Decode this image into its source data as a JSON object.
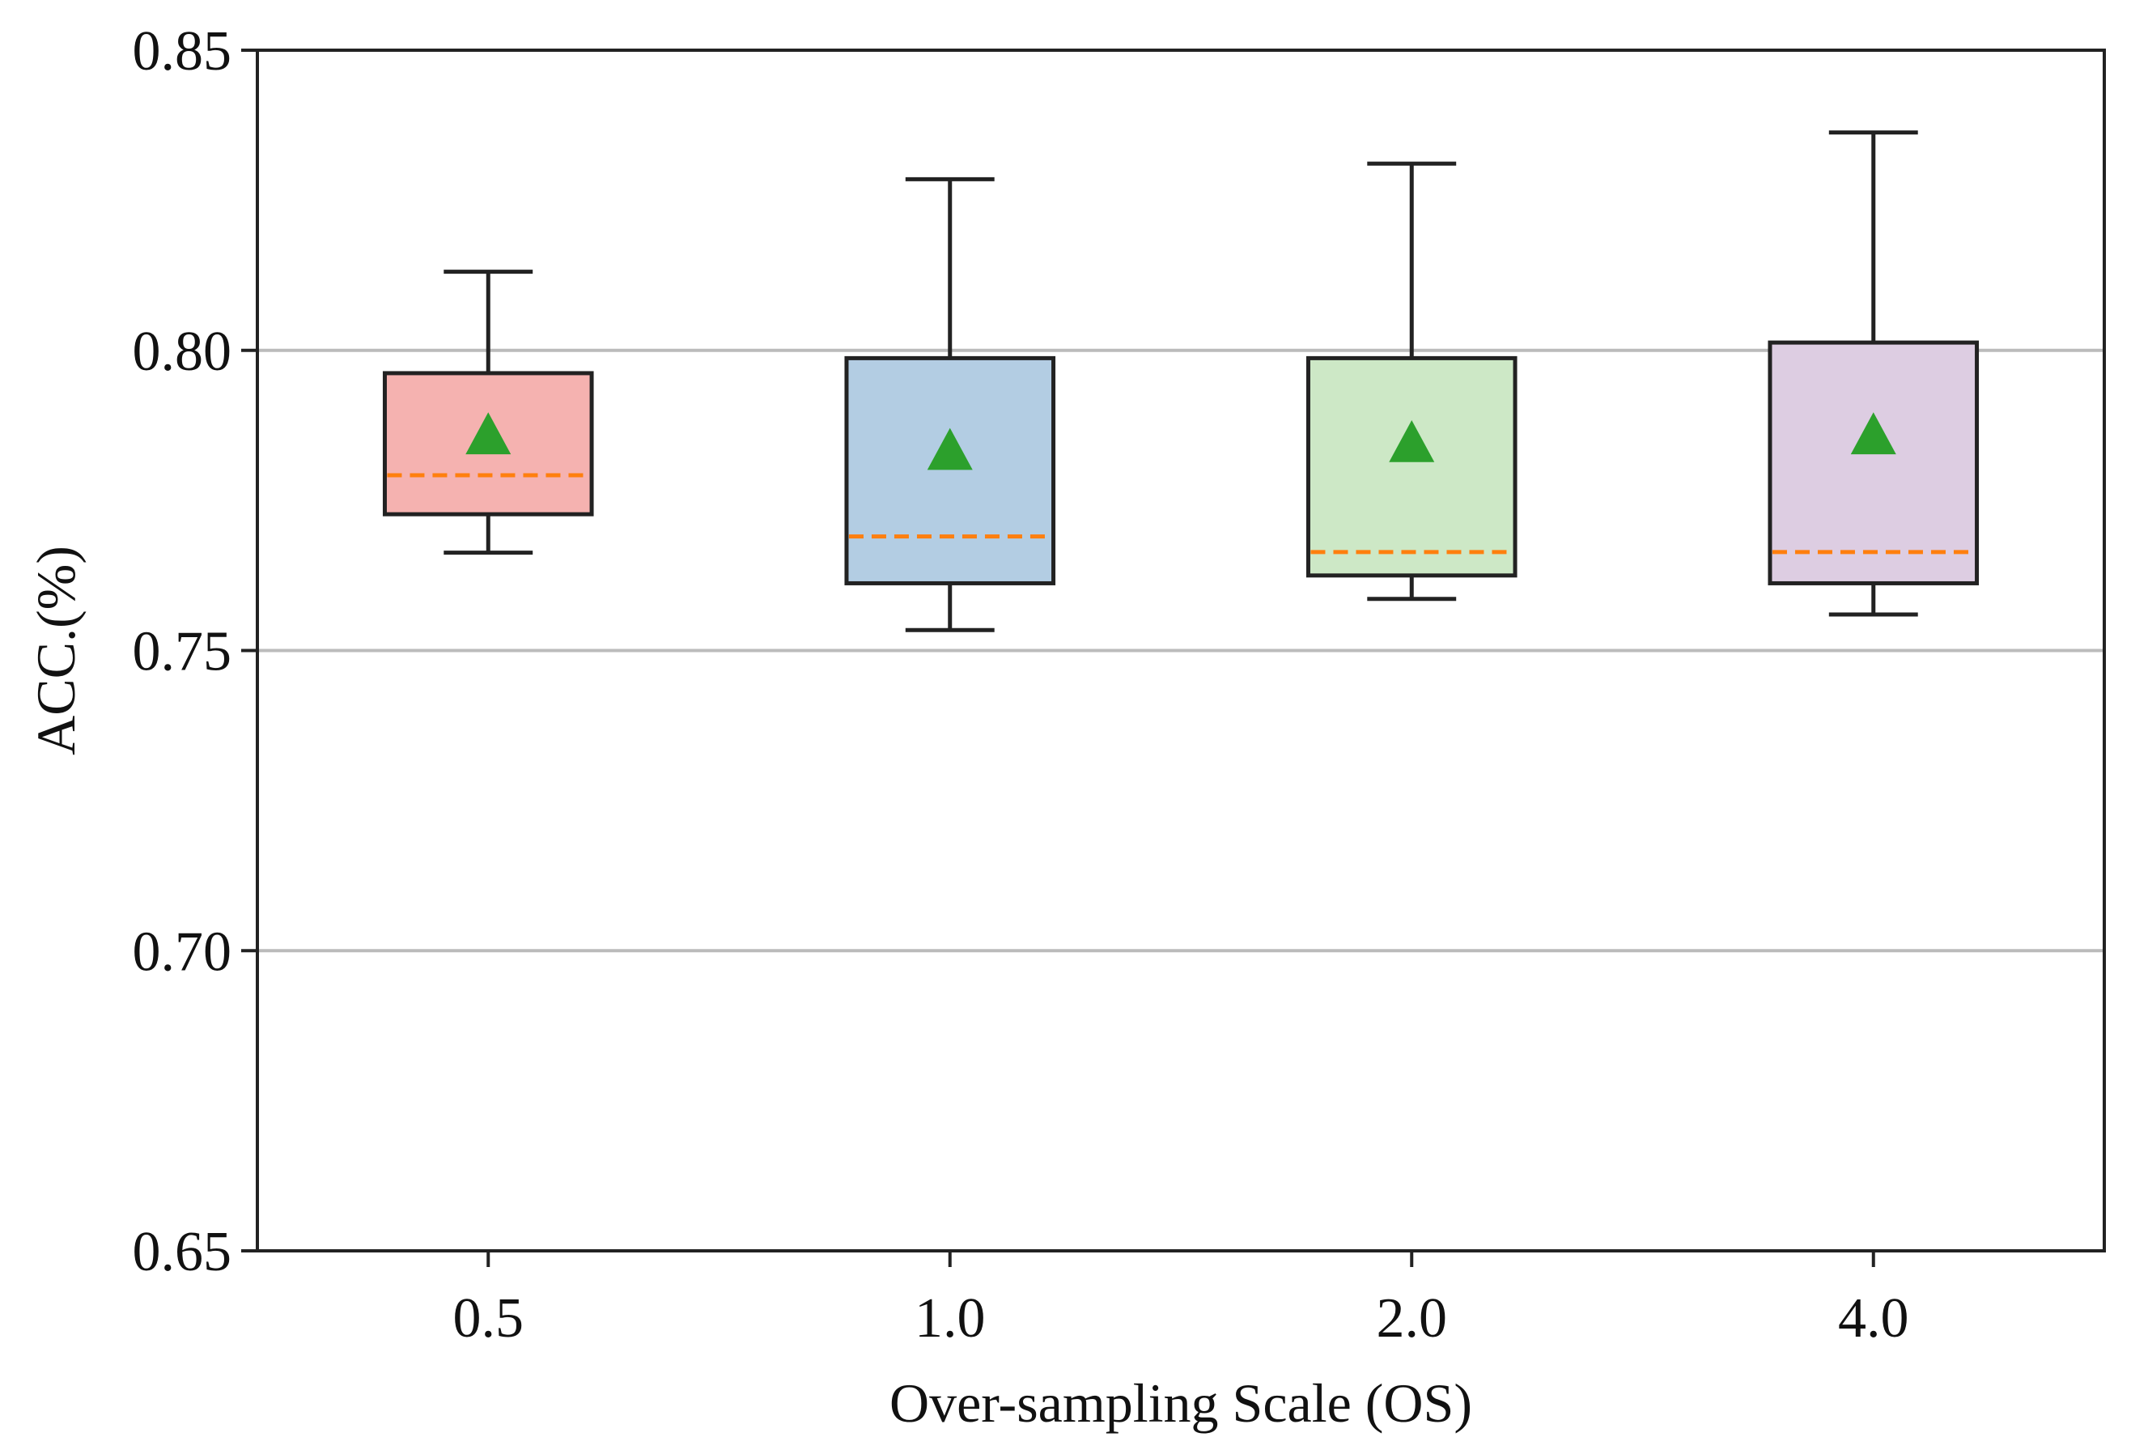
{
  "chart_data": {
    "type": "box",
    "title": "",
    "xlabel": "Over-sampling Scale (OS)",
    "ylabel": "ACC.(%)",
    "ylim": [
      0.65,
      0.85
    ],
    "yticks": [
      0.65,
      0.7,
      0.75,
      0.8,
      0.85
    ],
    "ytick_labels": [
      "0.65",
      "0.70",
      "0.75",
      "0.80",
      "0.85"
    ],
    "grid": "y",
    "categories": [
      "0.5",
      "1.0",
      "2.0",
      "4.0"
    ],
    "boxes": [
      {
        "category": "0.5",
        "whisker_low": 0.7663,
        "q1": 0.7727,
        "median": 0.7792,
        "q3": 0.7962,
        "whisker_high": 0.8131,
        "mean": 0.7859,
        "fill": "#f5b2b0"
      },
      {
        "category": "1.0",
        "whisker_low": 0.7534,
        "q1": 0.7612,
        "median": 0.769,
        "q3": 0.7987,
        "whisker_high": 0.8285,
        "mean": 0.7833,
        "fill": "#b3cde3"
      },
      {
        "category": "2.0",
        "whisker_low": 0.7586,
        "q1": 0.7625,
        "median": 0.7664,
        "q3": 0.7987,
        "whisker_high": 0.8311,
        "mean": 0.7846,
        "fill": "#cde8c6"
      },
      {
        "category": "4.0",
        "whisker_low": 0.756,
        "q1": 0.7612,
        "median": 0.7664,
        "q3": 0.8013,
        "whisker_high": 0.8363,
        "mean": 0.7859,
        "fill": "#ddcde2"
      }
    ],
    "colors": {
      "median_line": "#ff7f0e",
      "mean_marker": "#2ca02c",
      "box_edge": "#222222",
      "grid": "#bbbbbb"
    }
  }
}
